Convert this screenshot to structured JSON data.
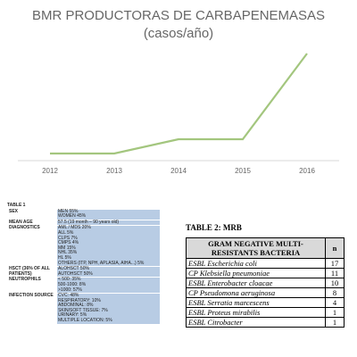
{
  "chart_data": {
    "type": "line",
    "title": "BMR PRODUCTORAS DE CARBAPENEMASAS",
    "subtitle": "(casos/año)",
    "categories": [
      "2012",
      "2013",
      "2014",
      "2015",
      "2016"
    ],
    "series": [
      {
        "color": "#a3c67e",
        "values": [
          1,
          1,
          3,
          3,
          15
        ]
      }
    ],
    "ylim": [
      0,
      16
    ]
  },
  "table1": {
    "title": "TABLE 1",
    "rows": [
      {
        "label": "SEX",
        "items": [
          "MEN 55%",
          "WOMEN 45%"
        ]
      },
      {
        "label": "MEAN AGE",
        "items": [
          "57.5 (19 month – 90 years old)"
        ]
      },
      {
        "label": "DIAGNOSTICS",
        "items": [
          "AML / MDS 20%",
          "ALL 5%",
          "CLPS 7%",
          "CMPS 4%",
          "MM 15%",
          "NHL 35%",
          "HL 5%",
          "OTHERS (ITP, NPH, APLASIA, AIHA...) 5%"
        ]
      },
      {
        "label": "HSCT (36% OF ALL PATIENTS)",
        "items": [
          "ALOHSCT 50%",
          "AUTOHSCT 50%"
        ]
      },
      {
        "label": "NEUTROPHILS",
        "items": [
          "< 500: 35%",
          "500-1000: 8%",
          ">1000: 57%"
        ]
      },
      {
        "label": "INFECTION SOURCE",
        "items": [
          "CVC: 48%",
          "RESPIRATORY: 10%",
          "ABDOMINAL: 8%",
          "SKIN/SOFT TISSUE: 7%",
          "URINARY: 5%",
          "MULTIPLE LOCATION: 5%"
        ]
      }
    ]
  },
  "table2": {
    "title": "TABLE 2: MRB",
    "header": [
      "GRAM NEGATIVE MULTI-RESISTANTS BACTERIA",
      "n"
    ],
    "rows": [
      [
        "ESBL Escherichia coli",
        17
      ],
      [
        "CP Klebsiella pneumoniae",
        11
      ],
      [
        "ESBL Enterobacter cloacae",
        10
      ],
      [
        "CP Pseudomona aeruginosa",
        8
      ],
      [
        "ESBL Serratia marcescens",
        4
      ],
      [
        "ESBL Proteus mirabilis",
        1
      ],
      [
        "ESBL Citrobacter",
        1
      ]
    ]
  }
}
